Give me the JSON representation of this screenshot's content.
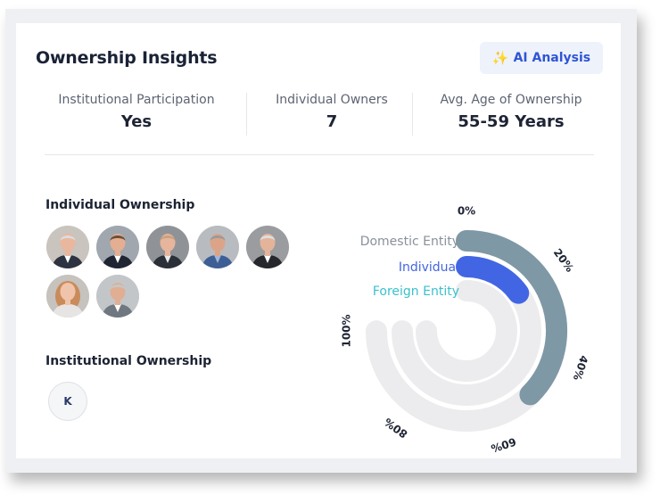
{
  "title": "Ownership Insights",
  "ai_button": {
    "icon": "sparkle-icon",
    "label": "AI Analysis"
  },
  "stats": [
    {
      "label": "Institutional Participation",
      "value": "Yes"
    },
    {
      "label": "Individual Owners",
      "value": "7"
    },
    {
      "label": "Avg. Age of Ownership",
      "value": "55-59 Years"
    }
  ],
  "individual": {
    "title": "Individual Ownership",
    "avatars": [
      {
        "name": "owner-1"
      },
      {
        "name": "owner-2"
      },
      {
        "name": "owner-3"
      },
      {
        "name": "owner-4"
      },
      {
        "name": "owner-5"
      },
      {
        "name": "owner-6"
      },
      {
        "name": "owner-7"
      }
    ]
  },
  "institutional": {
    "title": "Institutional Ownership",
    "badges": [
      "K"
    ]
  },
  "chart_data": {
    "type": "radial-bar",
    "series": [
      {
        "name": "Domestic Entity",
        "value": 50,
        "color": "#7f98a6"
      },
      {
        "name": "Individual",
        "value": 20,
        "color": "#4266e3"
      },
      {
        "name": "Foreign Entity",
        "value": 0,
        "color": "#3cc0cc"
      }
    ],
    "track_color": "#ececee",
    "label_color": "#8a909b",
    "ticks": [
      "0%",
      "20%",
      "40%",
      "60%",
      "80%",
      "100%"
    ],
    "range": [
      0,
      100
    ]
  }
}
